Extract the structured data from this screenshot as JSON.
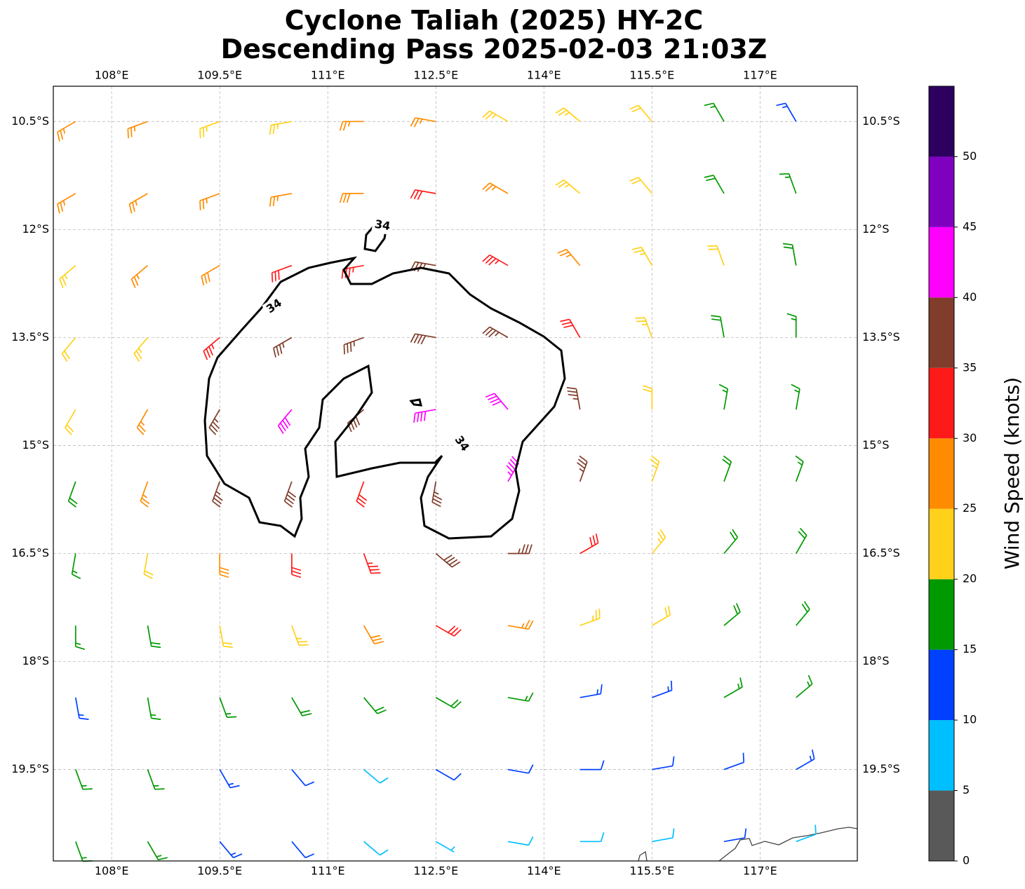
{
  "chart_data": {
    "type": "barbs",
    "title": "Cyclone Taliah (2025) HY-2C",
    "subtitle": "Descending Pass 2025-02-03 21:03Z",
    "xlim": [
      107.19,
      118.35
    ],
    "ylim": [
      -20.77,
      -10.01
    ],
    "xticks": [
      {
        "value": 108,
        "label": "108°E"
      },
      {
        "value": 109.5,
        "label": "109.5°E"
      },
      {
        "value": 111,
        "label": "111°E"
      },
      {
        "value": 112.5,
        "label": "112.5°E"
      },
      {
        "value": 114,
        "label": "114°E"
      },
      {
        "value": 115.5,
        "label": "115.5°E"
      },
      {
        "value": 117,
        "label": "117°E"
      }
    ],
    "yticks": [
      {
        "value": -10.5,
        "label": "10.5°S"
      },
      {
        "value": -12,
        "label": "12°S"
      },
      {
        "value": -13.5,
        "label": "13.5°S"
      },
      {
        "value": -15,
        "label": "15°S"
      },
      {
        "value": -16.5,
        "label": "16.5°S"
      },
      {
        "value": -18,
        "label": "18°S"
      },
      {
        "value": -19.5,
        "label": "19.5°S"
      }
    ],
    "grid": true,
    "barb_lons": [
      107.5,
      108.5,
      109.5,
      110.5,
      111.5,
      112.5,
      113.5,
      114.5,
      115.5,
      116.5,
      117.5
    ],
    "barb_lats": [
      -10.5,
      -11.5,
      -12.5,
      -13.5,
      -14.5,
      -15.5,
      -16.5,
      -17.5,
      -18.5,
      -19.5,
      -20.5
    ],
    "speed": [
      [
        27,
        27,
        24,
        23,
        25,
        25,
        24,
        23,
        20,
        16,
        13
      ],
      [
        26,
        27,
        25,
        27,
        29,
        30,
        27,
        24,
        22,
        19,
        17
      ],
      [
        23,
        25,
        28,
        32,
        33,
        36,
        33,
        27,
        24,
        21,
        18
      ],
      [
        22,
        24,
        33,
        37,
        37,
        38,
        37,
        32,
        24,
        18,
        16
      ],
      [
        21,
        26,
        36,
        40,
        38,
        40,
        42,
        35,
        22,
        17,
        16
      ],
      [
        19,
        25,
        35,
        38,
        32,
        36,
        44,
        37,
        24,
        18,
        17
      ],
      [
        16,
        22,
        28,
        32,
        33,
        38,
        37,
        30,
        23,
        19,
        18
      ],
      [
        16,
        19,
        22,
        24,
        28,
        30,
        27,
        24,
        21,
        18,
        18
      ],
      [
        14,
        17,
        17,
        18,
        19,
        19,
        17,
        14,
        14,
        16,
        17
      ],
      [
        16,
        17,
        14,
        12,
        8,
        10,
        12,
        11,
        10,
        12,
        14
      ],
      [
        16,
        17,
        14,
        12,
        8,
        7,
        8,
        9,
        8,
        10,
        9
      ]
    ],
    "direction": [
      [
        240,
        250,
        250,
        260,
        270,
        280,
        300,
        310,
        320,
        330,
        330
      ],
      [
        240,
        240,
        250,
        260,
        270,
        280,
        300,
        310,
        320,
        330,
        340
      ],
      [
        230,
        230,
        240,
        250,
        260,
        280,
        300,
        320,
        330,
        340,
        350
      ],
      [
        220,
        220,
        230,
        240,
        250,
        280,
        300,
        330,
        340,
        350,
        0
      ],
      [
        210,
        210,
        210,
        220,
        230,
        260,
        320,
        350,
        0,
        10,
        10
      ],
      [
        200,
        200,
        200,
        200,
        200,
        190,
        30,
        20,
        20,
        20,
        20
      ],
      [
        190,
        190,
        180,
        180,
        160,
        130,
        90,
        60,
        40,
        40,
        30
      ],
      [
        180,
        170,
        170,
        160,
        150,
        120,
        100,
        70,
        60,
        50,
        40
      ],
      [
        170,
        170,
        160,
        150,
        140,
        120,
        100,
        80,
        70,
        60,
        50
      ],
      [
        160,
        160,
        150,
        140,
        130,
        120,
        100,
        90,
        80,
        70,
        60
      ],
      [
        160,
        150,
        140,
        140,
        130,
        120,
        100,
        90,
        80,
        80,
        70
      ]
    ],
    "colorbar": {
      "label": "Wind Speed (knots)",
      "clim": [
        0,
        55
      ],
      "ticks": [
        0,
        5,
        10,
        15,
        20,
        25,
        30,
        35,
        40,
        45,
        50
      ],
      "colors": [
        "#595959",
        "#00bfff",
        "#0040ff",
        "#009900",
        "#ffd11a",
        "#ff8c00",
        "#ff1a1a",
        "#803d2b",
        "#ff00ff",
        "#8000c0",
        "#2d0060"
      ]
    },
    "contour_level": 34
  }
}
